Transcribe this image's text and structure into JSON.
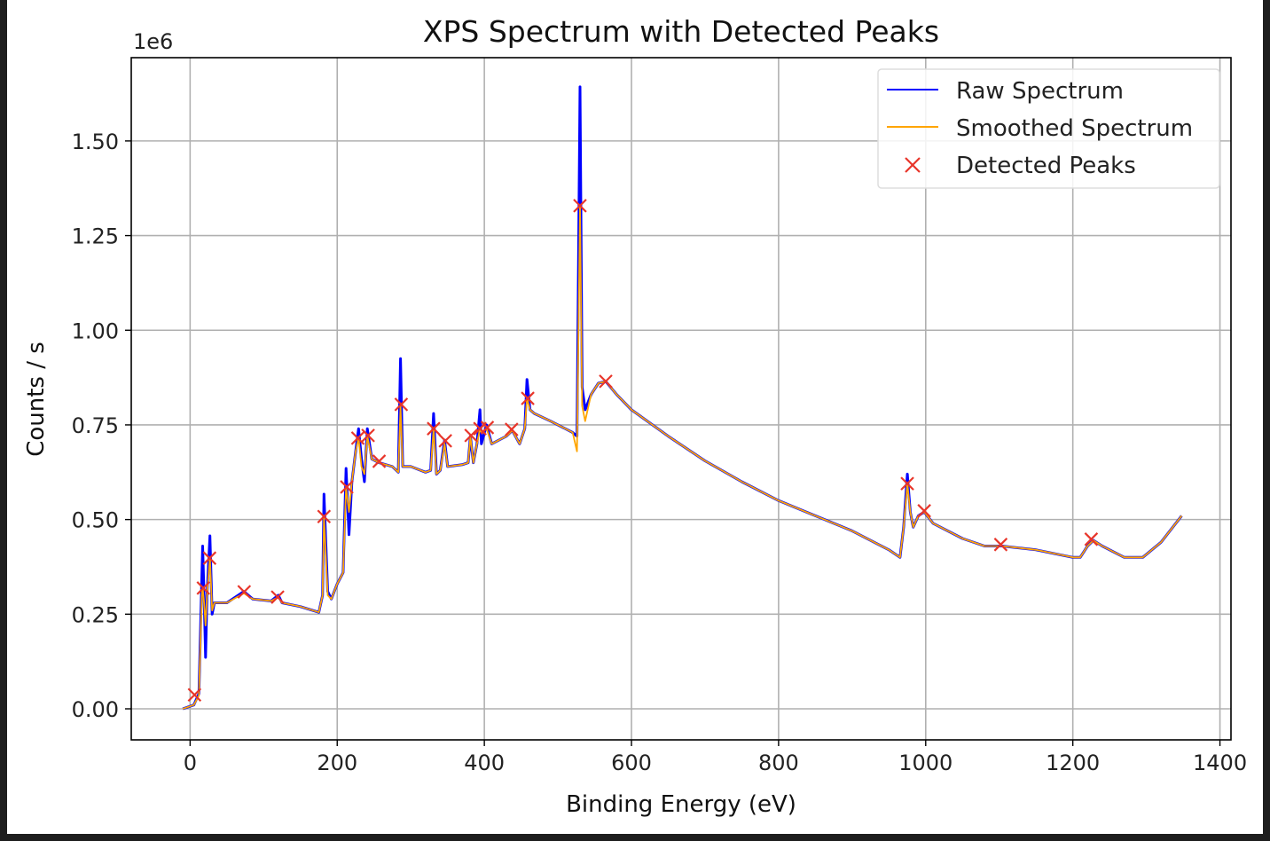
{
  "chart_data": {
    "type": "line",
    "title": "XPS Spectrum with Detected Peaks",
    "xlabel": "Binding Energy (eV)",
    "ylabel": "Counts / s",
    "y_offset_label": "1e6",
    "xlim": [
      -80,
      1415
    ],
    "ylim": [
      -0.082,
      1.72
    ],
    "y_scale": 1000000,
    "xticks": [
      0,
      200,
      400,
      600,
      800,
      1000,
      1200,
      1400
    ],
    "xtick_labels": [
      "0",
      "200",
      "400",
      "600",
      "800",
      "1000",
      "1200",
      "1400"
    ],
    "yticks": [
      0,
      0.25,
      0.5,
      0.75,
      1.0,
      1.25,
      1.5
    ],
    "ytick_labels": [
      "0.00",
      "0.25",
      "0.50",
      "0.75",
      "1.00",
      "1.25",
      "1.50"
    ],
    "grid": true,
    "legend_position": "top-right",
    "series": [
      {
        "name": "Raw Spectrum",
        "color": "#0000ff",
        "x": [
          -10,
          5,
          12,
          16,
          17,
          19,
          21,
          23,
          27,
          30,
          33,
          50,
          73,
          85,
          110,
          120,
          125,
          150,
          175,
          180,
          182,
          187,
          192,
          200,
          208,
          212,
          216,
          220,
          225,
          229,
          233,
          237,
          241,
          247,
          257,
          275,
          283,
          286,
          289,
          300,
          320,
          327,
          331,
          335,
          340,
          346,
          350,
          370,
          378,
          381,
          385,
          390,
          394,
          396,
          403,
          410,
          430,
          438,
          448,
          455,
          458,
          462,
          468,
          490,
          520,
          526,
          530,
          533,
          537,
          545,
          555,
          565,
          580,
          600,
          650,
          700,
          750,
          800,
          850,
          900,
          950,
          965,
          970,
          975,
          979,
          983,
          990,
          998,
          1010,
          1050,
          1080,
          1104,
          1150,
          1200,
          1210,
          1220,
          1228,
          1240,
          1270,
          1295,
          1320,
          1348
        ],
        "y": [
          0.0,
          0.01,
          0.04,
          0.35,
          0.43,
          0.3,
          0.136,
          0.3,
          0.457,
          0.25,
          0.28,
          0.28,
          0.31,
          0.29,
          0.285,
          0.3,
          0.28,
          0.27,
          0.255,
          0.3,
          0.567,
          0.31,
          0.29,
          0.33,
          0.36,
          0.635,
          0.46,
          0.6,
          0.68,
          0.74,
          0.66,
          0.6,
          0.74,
          0.66,
          0.65,
          0.64,
          0.625,
          0.925,
          0.64,
          0.64,
          0.625,
          0.63,
          0.78,
          0.62,
          0.63,
          0.71,
          0.64,
          0.645,
          0.65,
          0.72,
          0.65,
          0.7,
          0.79,
          0.7,
          0.75,
          0.7,
          0.72,
          0.735,
          0.7,
          0.74,
          0.87,
          0.79,
          0.78,
          0.76,
          0.73,
          0.72,
          1.643,
          0.85,
          0.79,
          0.83,
          0.86,
          0.865,
          0.83,
          0.79,
          0.72,
          0.655,
          0.6,
          0.55,
          0.51,
          0.47,
          0.42,
          0.4,
          0.48,
          0.62,
          0.52,
          0.48,
          0.51,
          0.52,
          0.49,
          0.45,
          0.43,
          0.43,
          0.42,
          0.4,
          0.4,
          0.43,
          0.445,
          0.43,
          0.4,
          0.4,
          0.44,
          0.51
        ]
      },
      {
        "name": "Smoothed Spectrum",
        "color": "#ffa500",
        "x": [
          -10,
          5,
          12,
          16,
          17,
          19,
          21,
          23,
          27,
          30,
          33,
          50,
          73,
          85,
          110,
          120,
          125,
          150,
          175,
          180,
          182,
          187,
          192,
          200,
          208,
          212,
          216,
          220,
          225,
          229,
          233,
          237,
          241,
          247,
          257,
          275,
          283,
          286,
          289,
          300,
          320,
          327,
          331,
          335,
          340,
          346,
          350,
          370,
          378,
          381,
          385,
          390,
          394,
          396,
          403,
          410,
          430,
          438,
          448,
          455,
          458,
          462,
          468,
          490,
          520,
          526,
          530,
          533,
          537,
          545,
          555,
          565,
          580,
          600,
          650,
          700,
          750,
          800,
          850,
          900,
          950,
          965,
          970,
          975,
          979,
          983,
          990,
          998,
          1010,
          1050,
          1080,
          1104,
          1150,
          1200,
          1210,
          1220,
          1228,
          1240,
          1270,
          1295,
          1320,
          1348
        ],
        "y": [
          0.0,
          0.01,
          0.035,
          0.3,
          0.32,
          0.28,
          0.22,
          0.3,
          0.4,
          0.26,
          0.28,
          0.28,
          0.305,
          0.29,
          0.285,
          0.295,
          0.28,
          0.27,
          0.255,
          0.3,
          0.51,
          0.3,
          0.29,
          0.33,
          0.36,
          0.585,
          0.52,
          0.6,
          0.68,
          0.715,
          0.64,
          0.62,
          0.72,
          0.66,
          0.65,
          0.64,
          0.625,
          0.8,
          0.64,
          0.64,
          0.625,
          0.63,
          0.74,
          0.62,
          0.63,
          0.7,
          0.64,
          0.645,
          0.65,
          0.72,
          0.65,
          0.7,
          0.74,
          0.73,
          0.74,
          0.7,
          0.72,
          0.735,
          0.7,
          0.74,
          0.82,
          0.79,
          0.78,
          0.76,
          0.73,
          0.68,
          1.33,
          0.8,
          0.76,
          0.83,
          0.86,
          0.865,
          0.83,
          0.79,
          0.72,
          0.655,
          0.6,
          0.55,
          0.51,
          0.47,
          0.42,
          0.4,
          0.48,
          0.595,
          0.52,
          0.48,
          0.51,
          0.52,
          0.49,
          0.45,
          0.43,
          0.43,
          0.42,
          0.4,
          0.4,
          0.43,
          0.445,
          0.43,
          0.4,
          0.4,
          0.44,
          0.51
        ]
      }
    ],
    "peaks": {
      "name": "Detected Peaks",
      "color": "#e8352a",
      "x": [
        6,
        18,
        26.5,
        73.5,
        119,
        182,
        213,
        228,
        242,
        257,
        287,
        331,
        347,
        382,
        394,
        404,
        437,
        459,
        530,
        565,
        975,
        998,
        1102,
        1225
      ],
      "y": [
        0.037,
        0.319,
        0.398,
        0.309,
        0.295,
        0.508,
        0.586,
        0.715,
        0.722,
        0.654,
        0.804,
        0.74,
        0.708,
        0.722,
        0.74,
        0.743,
        0.738,
        0.82,
        1.329,
        0.865,
        0.595,
        0.523,
        0.434,
        0.448
      ]
    }
  }
}
